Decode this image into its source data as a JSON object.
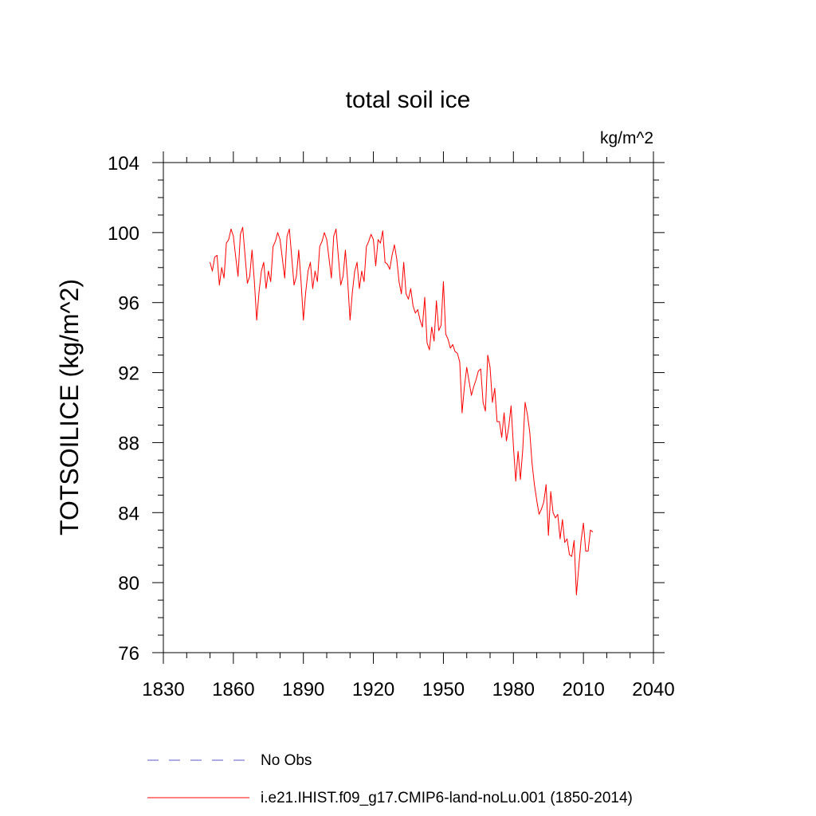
{
  "colors": {
    "series": "#ff0000",
    "no_obs": "#7b7bd6",
    "axis": "#000000",
    "background": "#ffffff"
  },
  "chart_data": {
    "type": "line",
    "title": "total soil ice",
    "units": "kg/m^2",
    "ylabel": "TOTSOILICE  (kg/m^2)",
    "xlabel": "",
    "xlim": [
      1830,
      2040
    ],
    "ylim": [
      76,
      104
    ],
    "xticks": [
      1830,
      1860,
      1890,
      1920,
      1950,
      1980,
      2010,
      2040
    ],
    "yticks": [
      76,
      80,
      84,
      88,
      92,
      96,
      100,
      104
    ],
    "grid": false,
    "legend": [
      {
        "label": "No Obs",
        "style": "dashed"
      },
      {
        "label": "i.e21.IHIST.f09_g17.CMIP6-land-noLu.001 (1850-2014)",
        "style": "solid"
      }
    ],
    "series": [
      {
        "name": "i.e21.IHIST.f09_g17.CMIP6-land-noLu.001 (1850-2014)",
        "x": [
          1850,
          1851,
          1852,
          1853,
          1854,
          1855,
          1856,
          1857,
          1858,
          1859,
          1860,
          1861,
          1862,
          1863,
          1864,
          1865,
          1866,
          1867,
          1868,
          1869,
          1870,
          1871,
          1872,
          1873,
          1874,
          1875,
          1876,
          1877,
          1878,
          1879,
          1880,
          1881,
          1882,
          1883,
          1884,
          1885,
          1886,
          1887,
          1888,
          1889,
          1890,
          1891,
          1892,
          1893,
          1894,
          1895,
          1896,
          1897,
          1898,
          1899,
          1900,
          1901,
          1902,
          1903,
          1904,
          1905,
          1906,
          1907,
          1908,
          1909,
          1910,
          1911,
          1912,
          1913,
          1914,
          1915,
          1916,
          1917,
          1918,
          1919,
          1920,
          1921,
          1922,
          1923,
          1924,
          1925,
          1926,
          1927,
          1928,
          1929,
          1930,
          1931,
          1932,
          1933,
          1934,
          1935,
          1936,
          1937,
          1938,
          1939,
          1940,
          1941,
          1942,
          1943,
          1944,
          1945,
          1946,
          1947,
          1948,
          1949,
          1950,
          1951,
          1952,
          1953,
          1954,
          1955,
          1956,
          1957,
          1958,
          1959,
          1960,
          1961,
          1962,
          1963,
          1964,
          1965,
          1966,
          1967,
          1968,
          1969,
          1970,
          1971,
          1972,
          1973,
          1974,
          1975,
          1976,
          1977,
          1978,
          1979,
          1980,
          1981,
          1982,
          1983,
          1984,
          1985,
          1986,
          1987,
          1988,
          1989,
          1990,
          1991,
          1992,
          1993,
          1994,
          1995,
          1996,
          1997,
          1998,
          1999,
          2000,
          2001,
          2002,
          2003,
          2004,
          2005,
          2006,
          2007,
          2008,
          2009,
          2010,
          2011,
          2012,
          2013,
          2014
        ],
        "y": [
          98.3,
          97.8,
          98.6,
          98.7,
          97.0,
          98.0,
          97.4,
          99.4,
          99.6,
          100.2,
          99.8,
          98.6,
          97.5,
          99.9,
          100.3,
          98.7,
          97.1,
          97.5,
          99.0,
          97.2,
          95.0,
          96.6,
          97.8,
          98.3,
          96.8,
          97.8,
          97.2,
          99.2,
          99.5,
          100.0,
          99.6,
          98.5,
          97.4,
          99.8,
          100.2,
          98.6,
          97.0,
          97.5,
          99.0,
          97.2,
          95.0,
          96.6,
          97.8,
          98.3,
          96.8,
          97.8,
          97.2,
          99.2,
          99.5,
          100.0,
          99.6,
          98.5,
          97.4,
          99.8,
          100.2,
          98.6,
          97.0,
          97.5,
          99.0,
          97.2,
          95.0,
          96.6,
          97.8,
          98.3,
          96.8,
          97.8,
          97.2,
          99.2,
          99.5,
          99.9,
          99.6,
          98.1,
          99.6,
          99.4,
          100.1,
          98.3,
          98.2,
          97.9,
          98.7,
          99.3,
          98.5,
          97.2,
          96.5,
          98.3,
          96.5,
          96.2,
          96.8,
          95.8,
          95.4,
          95.6,
          95.0,
          94.6,
          96.3,
          93.7,
          93.3,
          94.6,
          93.8,
          96.1,
          94.4,
          94.7,
          97.2,
          94.2,
          93.9,
          93.4,
          93.6,
          93.2,
          93.1,
          92.6,
          89.7,
          91.2,
          92.3,
          91.5,
          90.7,
          91.2,
          91.6,
          92.1,
          92.2,
          90.3,
          89.8,
          93.0,
          92.3,
          90.3,
          91.1,
          89.2,
          89.2,
          88.3,
          89.7,
          88.1,
          88.9,
          90.1,
          87.8,
          85.8,
          87.5,
          85.9,
          87.6,
          90.3,
          89.6,
          88.6,
          86.8,
          85.6,
          84.7,
          83.9,
          84.2,
          84.6,
          85.6,
          82.7,
          85.2,
          84.0,
          83.7,
          83.9,
          82.5,
          83.6,
          82.3,
          82.5,
          81.6,
          81.5,
          82.4,
          79.3,
          80.9,
          82.4,
          83.4,
          81.8,
          81.8,
          83.0,
          82.9
        ]
      }
    ]
  }
}
